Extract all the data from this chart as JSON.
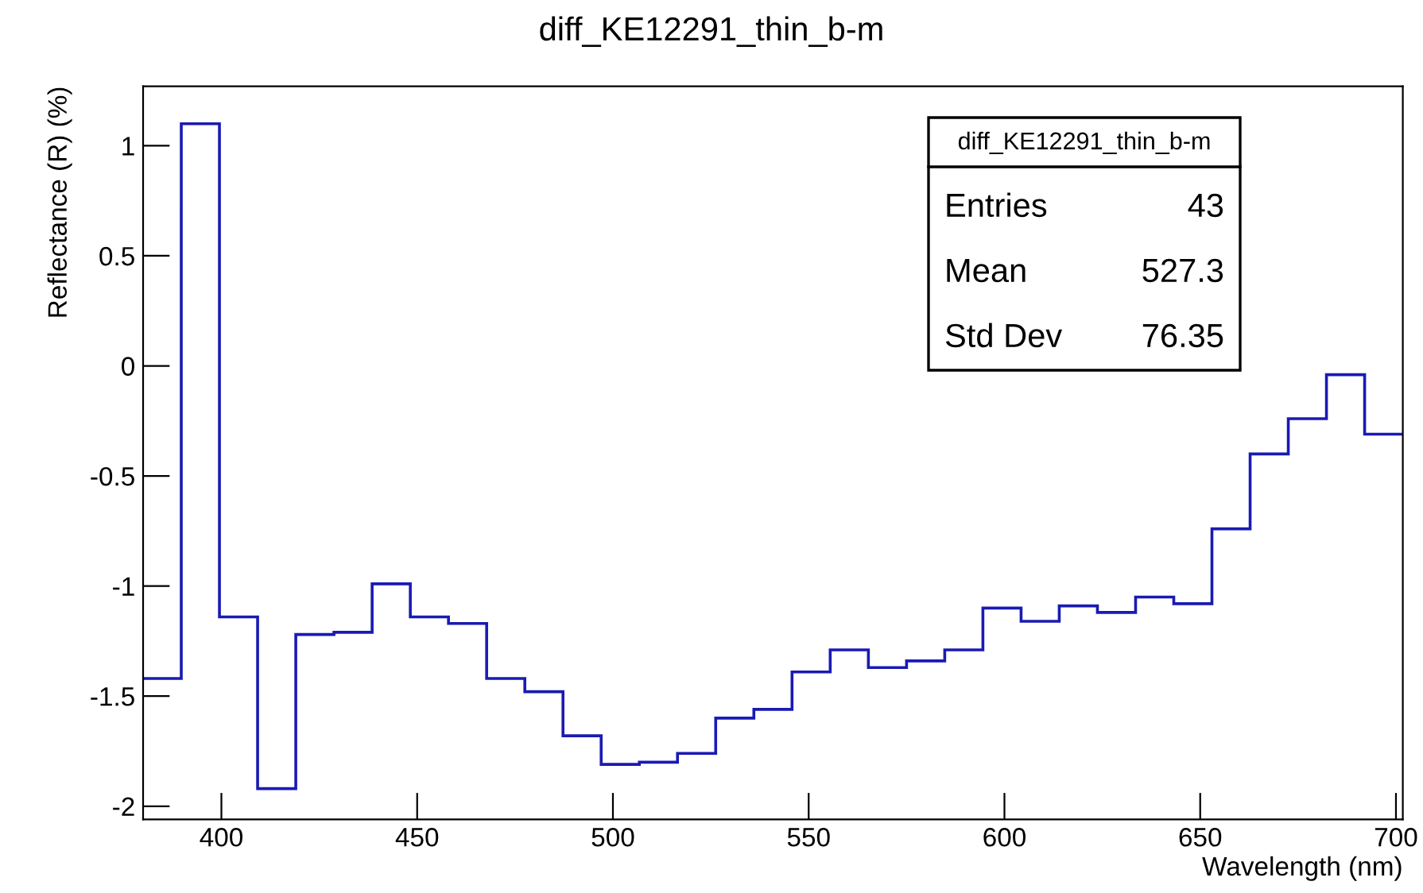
{
  "chart_data": {
    "type": "histogram",
    "title": "diff_KE12291_thin_b-m",
    "xlabel": "Wavelength (nm)",
    "ylabel": "Reflectance (R) (%)",
    "bins": [
      380.0,
      389.75,
      399.5,
      409.25,
      419.0,
      428.75,
      438.5,
      448.25,
      458.0,
      467.75,
      477.5,
      487.25,
      497.0,
      506.75,
      516.5,
      526.25,
      536.0,
      545.75,
      555.5,
      565.25,
      575.0,
      584.75,
      594.5,
      604.25,
      614.0,
      623.75,
      633.5,
      643.25,
      653.0,
      662.75,
      672.5,
      682.25,
      692.0,
      701.75
    ],
    "values": [
      -1.42,
      1.1,
      -1.14,
      -1.92,
      -1.22,
      -1.21,
      -0.99,
      -1.14,
      -1.17,
      -1.42,
      -1.48,
      -1.68,
      -1.81,
      -1.8,
      -1.76,
      -1.6,
      -1.56,
      -1.39,
      -1.29,
      -1.37,
      -1.34,
      -1.29,
      -1.1,
      -1.16,
      -1.09,
      -1.12,
      -1.05,
      -1.08,
      -0.74,
      -0.4,
      -0.24,
      -0.04,
      -0.31
    ],
    "color": "#1a1ab4",
    "xlim": [
      380,
      701.75
    ],
    "xticks": [
      400,
      450,
      500,
      550,
      600,
      650,
      700
    ],
    "ylim": [
      -2.06,
      1.27
    ],
    "yticks": [
      -2,
      -1.5,
      -1,
      -0.5,
      0,
      0.5,
      1
    ],
    "grid": false,
    "legend": false,
    "annotations": [
      "diff_KE12291_thin_b-m",
      "Entries",
      "43",
      "Mean",
      "527.3",
      "Std Dev",
      "76.35"
    ]
  }
}
